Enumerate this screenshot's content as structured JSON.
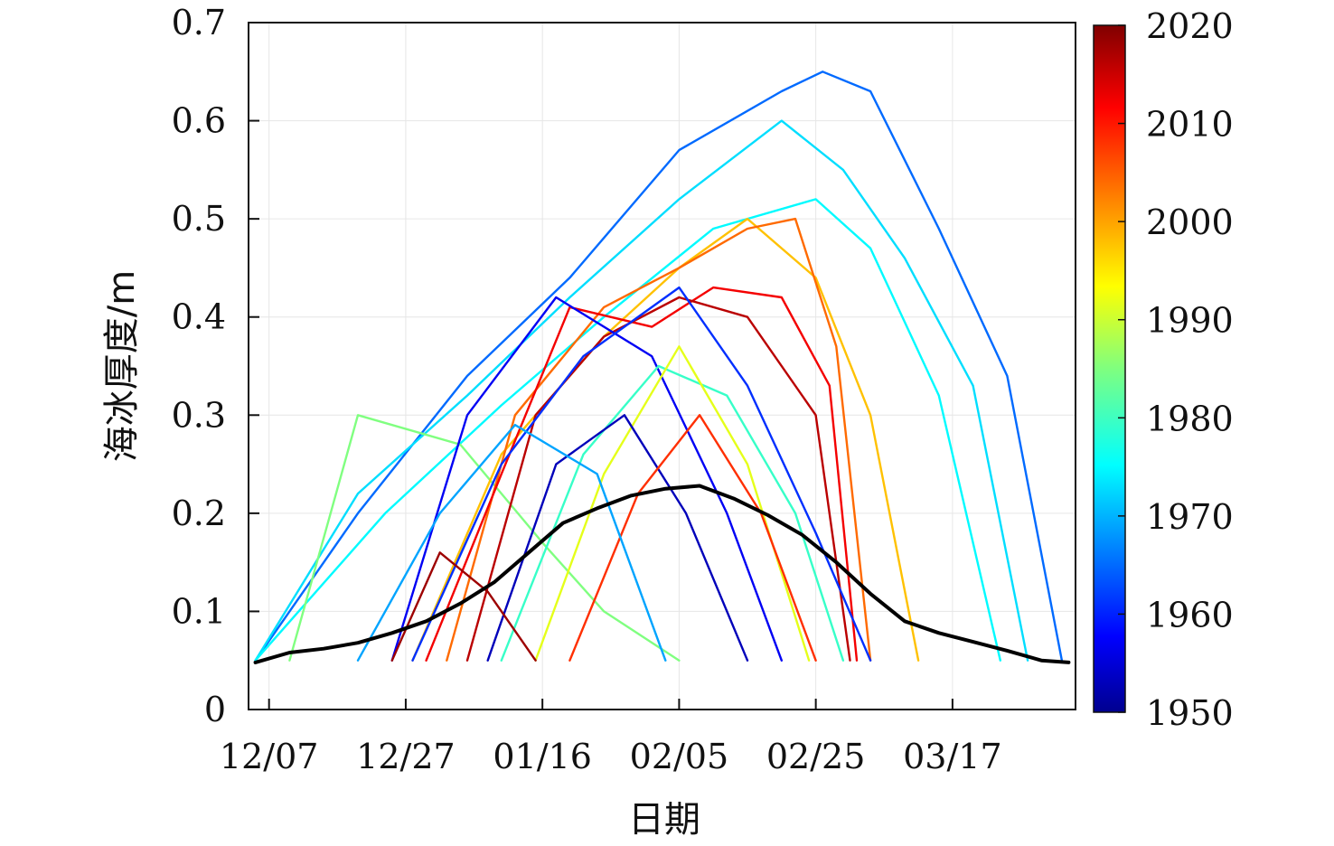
{
  "chart_data": {
    "type": "line",
    "title": "",
    "xlabel": "日期",
    "ylabel": "海冰厚度/m",
    "xlim": [
      "12/04",
      "04/04"
    ],
    "ylim": [
      0,
      0.7
    ],
    "x_ticks": [
      "12/07",
      "12/27",
      "01/16",
      "02/05",
      "02/25",
      "03/17"
    ],
    "y_ticks": [
      "0",
      "0.1",
      "0.2",
      "0.3",
      "0.4",
      "0.5",
      "0.6",
      "0.7"
    ],
    "grid": true,
    "colorbar": {
      "label_ticks": [
        "2020",
        "2010",
        "2000",
        "1990",
        "1980",
        "1970",
        "1960",
        "1950"
      ],
      "range": [
        1950,
        2020
      ],
      "colormap": "jet"
    },
    "series_mean": {
      "color": "#000000",
      "x": [
        "12/05",
        "12/10",
        "12/15",
        "12/20",
        "12/25",
        "12/30",
        "01/04",
        "01/09",
        "01/14",
        "01/19",
        "01/24",
        "01/29",
        "02/03",
        "02/08",
        "02/13",
        "02/18",
        "02/23",
        "02/28",
        "03/05",
        "03/10",
        "03/15",
        "03/20",
        "03/25",
        "03/30",
        "04/03"
      ],
      "y": [
        0.048,
        0.058,
        0.062,
        0.068,
        0.078,
        0.09,
        0.108,
        0.13,
        0.16,
        0.19,
        0.205,
        0.218,
        0.225,
        0.228,
        0.215,
        0.198,
        0.178,
        0.15,
        0.118,
        0.09,
        0.078,
        0.069,
        0.06,
        0.05,
        0.048
      ]
    },
    "series_yearly": [
      {
        "year": 1966,
        "x": [
          "12/05",
          "12/20",
          "01/05",
          "01/20",
          "02/05",
          "02/20",
          "02/26",
          "03/05",
          "03/15",
          "03/25",
          "04/02"
        ],
        "y": [
          0.05,
          0.2,
          0.34,
          0.44,
          0.57,
          0.63,
          0.65,
          0.63,
          0.49,
          0.34,
          0.05
        ]
      },
      {
        "year": 1974,
        "x": [
          "12/05",
          "12/20",
          "01/05",
          "01/20",
          "02/05",
          "02/20",
          "03/01",
          "03/10",
          "03/20",
          "03/28"
        ],
        "y": [
          0.05,
          0.22,
          0.32,
          0.42,
          0.52,
          0.6,
          0.55,
          0.46,
          0.33,
          0.05
        ]
      },
      {
        "year": 1976,
        "x": [
          "12/05",
          "12/24",
          "01/10",
          "01/25",
          "02/10",
          "02/25",
          "03/05",
          "03/15",
          "03/24"
        ],
        "y": [
          0.05,
          0.2,
          0.31,
          0.4,
          0.49,
          0.52,
          0.47,
          0.32,
          0.05
        ]
      },
      {
        "year": 1985,
        "x": [
          "12/10",
          "12/20",
          "01/04",
          "01/16",
          "01/25",
          "02/05"
        ],
        "y": [
          0.05,
          0.3,
          0.27,
          0.17,
          0.1,
          0.05
        ]
      },
      {
        "year": 1998,
        "x": [
          "12/28",
          "01/10",
          "01/25",
          "02/05",
          "02/15",
          "02/25",
          "03/05",
          "03/12"
        ],
        "y": [
          0.05,
          0.26,
          0.38,
          0.45,
          0.5,
          0.44,
          0.3,
          0.05
        ]
      },
      {
        "year": 2004,
        "x": [
          "01/02",
          "01/12",
          "01/25",
          "02/05",
          "02/15",
          "02/22",
          "02/28",
          "03/05"
        ],
        "y": [
          0.05,
          0.3,
          0.41,
          0.45,
          0.49,
          0.5,
          0.37,
          0.05
        ]
      },
      {
        "year": 2012,
        "x": [
          "12/30",
          "01/10",
          "01/20",
          "02/01",
          "02/10",
          "02/20",
          "02/27",
          "03/03"
        ],
        "y": [
          0.05,
          0.24,
          0.41,
          0.39,
          0.43,
          0.42,
          0.33,
          0.05
        ]
      },
      {
        "year": 2016,
        "x": [
          "01/05",
          "01/15",
          "01/25",
          "02/05",
          "02/15",
          "02/25",
          "03/02"
        ],
        "y": [
          0.05,
          0.3,
          0.38,
          0.42,
          0.4,
          0.3,
          0.05
        ]
      },
      {
        "year": 1958,
        "x": [
          "12/25",
          "01/05",
          "01/18",
          "02/01",
          "02/12",
          "02/20"
        ],
        "y": [
          0.05,
          0.3,
          0.42,
          0.36,
          0.2,
          0.05
        ]
      },
      {
        "year": 1962,
        "x": [
          "12/28",
          "01/10",
          "01/22",
          "02/05",
          "02/15",
          "02/25",
          "03/05"
        ],
        "y": [
          0.05,
          0.25,
          0.36,
          0.43,
          0.33,
          0.18,
          0.05
        ]
      },
      {
        "year": 1980,
        "x": [
          "01/10",
          "01/22",
          "02/02",
          "02/12",
          "02/22",
          "03/01"
        ],
        "y": [
          0.05,
          0.26,
          0.35,
          0.32,
          0.2,
          0.05
        ]
      },
      {
        "year": 1992,
        "x": [
          "01/15",
          "01/25",
          "02/05",
          "02/15",
          "02/24"
        ],
        "y": [
          0.05,
          0.24,
          0.37,
          0.25,
          0.05
        ]
      },
      {
        "year": 1954,
        "x": [
          "01/08",
          "01/18",
          "01/28",
          "02/06",
          "02/15"
        ],
        "y": [
          0.05,
          0.25,
          0.3,
          0.2,
          0.05
        ]
      },
      {
        "year": 2008,
        "x": [
          "01/20",
          "01/30",
          "02/08",
          "02/17",
          "02/25"
        ],
        "y": [
          0.05,
          0.22,
          0.3,
          0.2,
          0.05
        ]
      },
      {
        "year": 1970,
        "x": [
          "12/20",
          "01/01",
          "01/12",
          "01/24",
          "02/03"
        ],
        "y": [
          0.05,
          0.2,
          0.29,
          0.24,
          0.05
        ]
      },
      {
        "year": 2018,
        "x": [
          "12/25",
          "01/01",
          "01/08",
          "01/15"
        ],
        "y": [
          0.05,
          0.16,
          0.12,
          0.05
        ]
      }
    ]
  }
}
